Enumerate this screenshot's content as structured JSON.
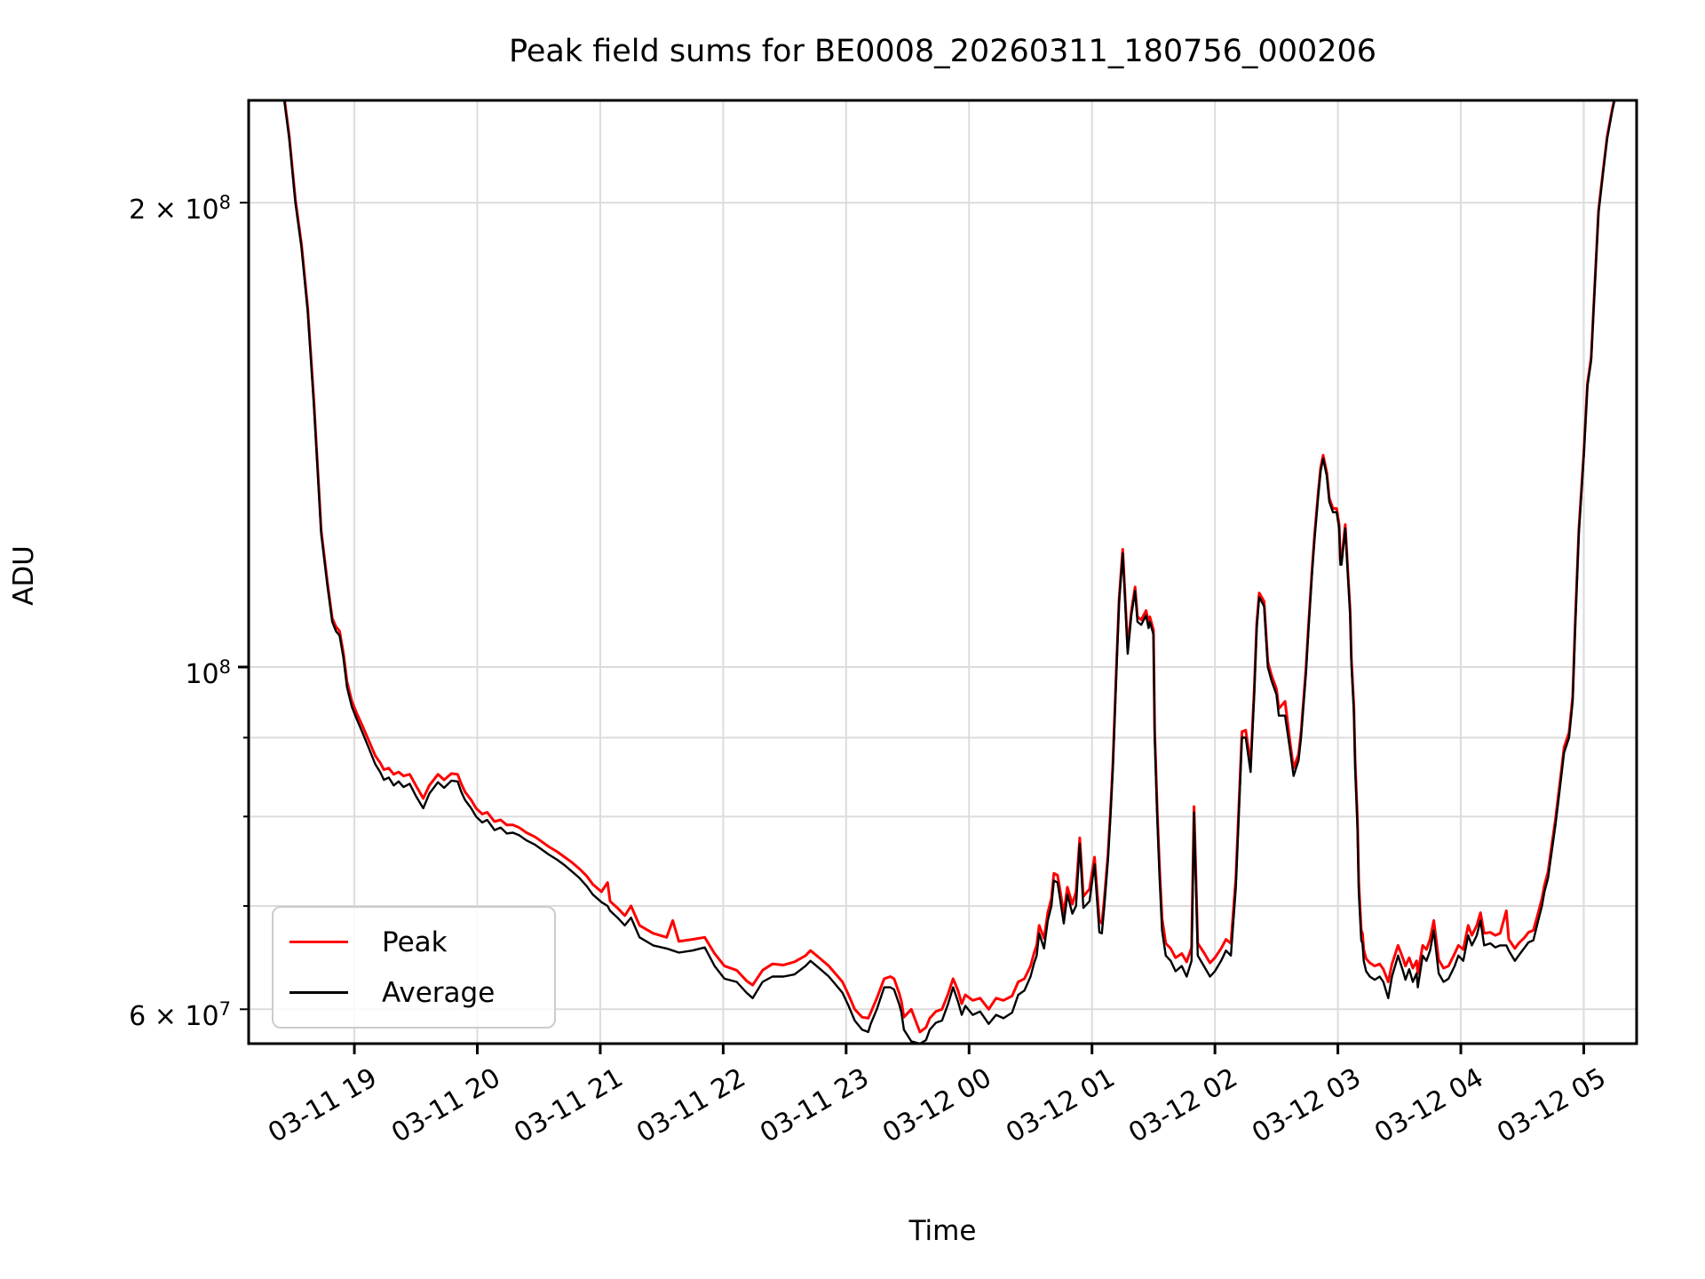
{
  "title": "Peak field sums for BE0008_20260311_180756_000206",
  "legend": {
    "items": [
      {
        "label": "Peak",
        "color": "#ff0000"
      },
      {
        "label": "Average",
        "color": "#000000"
      }
    ]
  },
  "colors": {
    "peak_line": "#ff0000",
    "average_line": "#000000",
    "grid": "#dcdcdc",
    "frame": "#000000",
    "legend_border": "#cccccc",
    "background": "#ffffff"
  },
  "chart_data": {
    "type": "line",
    "title": "Peak field sums for BE0008_20260311_180756_000206",
    "xlabel": "Time",
    "ylabel": "ADU",
    "y_scale": "log",
    "grid": true,
    "legend_position": "lower left",
    "y_unit_scale": 10000000,
    "ylim": [
      57000000,
      233000000
    ],
    "x_unit": "hours since 2026-03-11 00:00",
    "xlim": [
      18.14,
      29.43
    ],
    "x_ticks": [
      {
        "t": 19,
        "label": "03-11 19"
      },
      {
        "t": 20,
        "label": "03-11 20"
      },
      {
        "t": 21,
        "label": "03-11 21"
      },
      {
        "t": 22,
        "label": "03-11 22"
      },
      {
        "t": 23,
        "label": "03-11 23"
      },
      {
        "t": 24,
        "label": "03-12 00"
      },
      {
        "t": 25,
        "label": "03-12 01"
      },
      {
        "t": 26,
        "label": "03-12 02"
      },
      {
        "t": 27,
        "label": "03-12 03"
      },
      {
        "t": 28,
        "label": "03-12 04"
      },
      {
        "t": 29,
        "label": "03-12 05"
      }
    ],
    "y_ticks": [
      {
        "v": 20,
        "label": "2 × 10^8",
        "major": false
      },
      {
        "v": 10,
        "label": "10^8",
        "major": true
      },
      {
        "v": 9,
        "label": "",
        "major": false
      },
      {
        "v": 8,
        "label": "",
        "major": false
      },
      {
        "v": 7,
        "label": "",
        "major": false
      },
      {
        "v": 6,
        "label": "6 × 10^7",
        "major": false
      }
    ],
    "series_names": [
      "Average",
      "Peak"
    ],
    "points_format": "[t_hours, average_x1e7, peak_x1e7]",
    "points": [
      [
        18.14,
        27.5,
        27.6
      ],
      [
        18.25,
        25.0,
        25.1
      ],
      [
        18.35,
        24.0,
        24.1
      ],
      [
        18.43,
        23.3,
        23.4
      ],
      [
        18.47,
        22.0,
        22.1
      ],
      [
        18.52,
        20.0,
        20.1
      ],
      [
        18.57,
        18.7,
        18.8
      ],
      [
        18.62,
        17.0,
        17.1
      ],
      [
        18.67,
        14.8,
        14.9
      ],
      [
        18.73,
        12.2,
        12.26
      ],
      [
        18.78,
        11.3,
        11.36
      ],
      [
        18.82,
        10.7,
        10.76
      ],
      [
        18.85,
        10.55,
        10.62
      ],
      [
        18.88,
        10.48,
        10.55
      ],
      [
        18.91,
        10.15,
        10.22
      ],
      [
        18.94,
        9.7,
        9.78
      ],
      [
        18.98,
        9.42,
        9.5
      ],
      [
        19.02,
        9.25,
        9.33
      ],
      [
        19.07,
        9.05,
        9.14
      ],
      [
        19.12,
        8.85,
        8.95
      ],
      [
        19.17,
        8.65,
        8.76
      ],
      [
        19.21,
        8.55,
        8.67
      ],
      [
        19.24,
        8.45,
        8.58
      ],
      [
        19.28,
        8.48,
        8.6
      ],
      [
        19.32,
        8.38,
        8.52
      ],
      [
        19.36,
        8.43,
        8.55
      ],
      [
        19.4,
        8.36,
        8.5
      ],
      [
        19.45,
        8.4,
        8.52
      ],
      [
        19.5,
        8.25,
        8.38
      ],
      [
        19.56,
        8.1,
        8.22
      ],
      [
        19.61,
        8.28,
        8.38
      ],
      [
        19.68,
        8.42,
        8.52
      ],
      [
        19.73,
        8.35,
        8.45
      ],
      [
        19.79,
        8.44,
        8.53
      ],
      [
        19.84,
        8.43,
        8.52
      ],
      [
        19.87,
        8.3,
        8.4
      ],
      [
        19.9,
        8.2,
        8.3
      ],
      [
        19.95,
        8.1,
        8.2
      ],
      [
        19.99,
        8.0,
        8.1
      ],
      [
        20.04,
        7.93,
        8.03
      ],
      [
        20.08,
        7.96,
        8.05
      ],
      [
        20.14,
        7.84,
        7.94
      ],
      [
        20.19,
        7.87,
        7.96
      ],
      [
        20.24,
        7.8,
        7.9
      ],
      [
        20.29,
        7.81,
        7.9
      ],
      [
        20.34,
        7.78,
        7.87
      ],
      [
        20.4,
        7.72,
        7.81
      ],
      [
        20.47,
        7.67,
        7.76
      ],
      [
        20.52,
        7.62,
        7.71
      ],
      [
        20.58,
        7.56,
        7.65
      ],
      [
        20.65,
        7.5,
        7.59
      ],
      [
        20.71,
        7.44,
        7.53
      ],
      [
        20.77,
        7.37,
        7.47
      ],
      [
        20.83,
        7.3,
        7.4
      ],
      [
        20.89,
        7.21,
        7.32
      ],
      [
        20.94,
        7.12,
        7.23
      ],
      [
        21.01,
        7.04,
        7.15
      ],
      [
        21.06,
        7.0,
        7.25
      ],
      [
        21.08,
        6.95,
        7.05
      ],
      [
        21.14,
        6.88,
        6.98
      ],
      [
        21.2,
        6.8,
        6.9
      ],
      [
        21.25,
        6.88,
        7.0
      ],
      [
        21.32,
        6.68,
        6.8
      ],
      [
        21.43,
        6.6,
        6.72
      ],
      [
        21.54,
        6.57,
        6.68
      ],
      [
        21.59,
        6.55,
        6.85
      ],
      [
        21.64,
        6.53,
        6.64
      ],
      [
        21.75,
        6.55,
        6.66
      ],
      [
        21.85,
        6.58,
        6.68
      ],
      [
        21.93,
        6.4,
        6.52
      ],
      [
        22.01,
        6.28,
        6.4
      ],
      [
        22.11,
        6.25,
        6.36
      ],
      [
        22.19,
        6.15,
        6.26
      ],
      [
        22.24,
        6.1,
        6.22
      ],
      [
        22.32,
        6.25,
        6.36
      ],
      [
        22.4,
        6.3,
        6.42
      ],
      [
        22.49,
        6.3,
        6.41
      ],
      [
        22.58,
        6.32,
        6.44
      ],
      [
        22.67,
        6.4,
        6.5
      ],
      [
        22.71,
        6.45,
        6.55
      ],
      [
        22.79,
        6.37,
        6.47
      ],
      [
        22.86,
        6.3,
        6.4
      ],
      [
        22.97,
        6.15,
        6.25
      ],
      [
        23.02,
        6.03,
        6.13
      ],
      [
        23.07,
        5.9,
        6.0
      ],
      [
        23.13,
        5.82,
        5.93
      ],
      [
        23.18,
        5.8,
        5.92
      ],
      [
        23.2,
        5.87,
        5.97
      ],
      [
        23.25,
        6.0,
        6.1
      ],
      [
        23.31,
        6.2,
        6.28
      ],
      [
        23.36,
        6.2,
        6.3
      ],
      [
        23.39,
        6.18,
        6.28
      ],
      [
        23.43,
        6.05,
        6.15
      ],
      [
        23.45,
        5.97,
        6.07
      ],
      [
        23.47,
        5.82,
        5.93
      ],
      [
        23.53,
        5.72,
        6.0
      ],
      [
        23.6,
        5.7,
        5.8
      ],
      [
        23.65,
        5.73,
        5.84
      ],
      [
        23.68,
        5.82,
        5.92
      ],
      [
        23.73,
        5.88,
        5.98
      ],
      [
        23.78,
        5.9,
        6.0
      ],
      [
        23.83,
        6.05,
        6.14
      ],
      [
        23.87,
        6.2,
        6.28
      ],
      [
        23.91,
        6.07,
        6.17
      ],
      [
        23.94,
        5.95,
        6.05
      ],
      [
        23.97,
        6.03,
        6.13
      ],
      [
        24.03,
        5.95,
        6.08
      ],
      [
        24.09,
        5.98,
        6.1
      ],
      [
        24.16,
        5.87,
        6.0
      ],
      [
        24.22,
        5.95,
        6.1
      ],
      [
        24.28,
        5.92,
        6.08
      ],
      [
        24.35,
        5.97,
        6.12
      ],
      [
        24.4,
        6.13,
        6.25
      ],
      [
        24.45,
        6.17,
        6.28
      ],
      [
        24.5,
        6.3,
        6.4
      ],
      [
        24.53,
        6.43,
        6.53
      ],
      [
        24.55,
        6.5,
        6.6
      ],
      [
        24.57,
        6.72,
        6.8
      ],
      [
        24.61,
        6.57,
        6.67
      ],
      [
        24.64,
        6.85,
        6.93
      ],
      [
        24.67,
        7.0,
        7.08
      ],
      [
        24.69,
        7.27,
        7.35
      ],
      [
        24.72,
        7.25,
        7.33
      ],
      [
        24.74,
        7.08,
        7.17
      ],
      [
        24.77,
        6.82,
        6.92
      ],
      [
        24.8,
        7.12,
        7.2
      ],
      [
        24.84,
        6.92,
        7.02
      ],
      [
        24.87,
        7.0,
        7.15
      ],
      [
        24.9,
        7.68,
        7.75
      ],
      [
        24.93,
        6.98,
        7.1
      ],
      [
        24.98,
        7.05,
        7.18
      ],
      [
        25.02,
        7.45,
        7.53
      ],
      [
        25.06,
        6.73,
        6.85
      ],
      [
        25.08,
        6.72,
        6.82
      ],
      [
        25.1,
        7.0,
        7.08
      ],
      [
        25.13,
        7.5,
        7.56
      ],
      [
        25.15,
        8.0,
        8.06
      ],
      [
        25.17,
        8.6,
        8.66
      ],
      [
        25.2,
        10.0,
        10.07
      ],
      [
        25.22,
        11.0,
        11.07
      ],
      [
        25.25,
        11.85,
        11.92
      ],
      [
        25.27,
        11.0,
        11.08
      ],
      [
        25.29,
        10.2,
        10.28
      ],
      [
        25.32,
        10.8,
        10.87
      ],
      [
        25.35,
        11.2,
        11.27
      ],
      [
        25.37,
        10.7,
        10.78
      ],
      [
        25.4,
        10.65,
        10.73
      ],
      [
        25.44,
        10.8,
        10.88
      ],
      [
        25.46,
        10.6,
        10.68
      ],
      [
        25.47,
        10.7,
        10.78
      ],
      [
        25.5,
        10.5,
        10.57
      ],
      [
        25.51,
        9.0,
        9.1
      ],
      [
        25.53,
        8.0,
        8.1
      ],
      [
        25.55,
        7.3,
        7.4
      ],
      [
        25.57,
        6.75,
        6.87
      ],
      [
        25.6,
        6.5,
        6.62
      ],
      [
        25.64,
        6.45,
        6.57
      ],
      [
        25.68,
        6.35,
        6.48
      ],
      [
        25.73,
        6.4,
        6.52
      ],
      [
        25.77,
        6.3,
        6.44
      ],
      [
        25.81,
        6.45,
        6.58
      ],
      [
        25.83,
        8.05,
        8.12
      ],
      [
        25.86,
        6.5,
        6.62
      ],
      [
        25.91,
        6.4,
        6.53
      ],
      [
        25.96,
        6.3,
        6.43
      ],
      [
        26.0,
        6.35,
        6.48
      ],
      [
        26.05,
        6.45,
        6.57
      ],
      [
        26.09,
        6.55,
        6.66
      ],
      [
        26.13,
        6.5,
        6.62
      ],
      [
        26.17,
        7.2,
        7.3
      ],
      [
        26.22,
        9.0,
        9.08
      ],
      [
        26.25,
        9.0,
        9.1
      ],
      [
        26.29,
        8.55,
        8.65
      ],
      [
        26.32,
        9.6,
        9.68
      ],
      [
        26.34,
        10.6,
        10.67
      ],
      [
        26.36,
        11.1,
        11.17
      ],
      [
        26.4,
        10.95,
        11.03
      ],
      [
        26.43,
        10.0,
        10.08
      ],
      [
        26.46,
        9.8,
        9.88
      ],
      [
        26.5,
        9.6,
        9.68
      ],
      [
        26.52,
        9.3,
        9.4
      ],
      [
        26.57,
        9.3,
        9.5
      ],
      [
        26.61,
        8.85,
        8.95
      ],
      [
        26.64,
        8.5,
        8.6
      ],
      [
        26.68,
        8.7,
        8.78
      ],
      [
        26.7,
        9.0,
        9.07
      ],
      [
        26.74,
        9.9,
        9.97
      ],
      [
        26.76,
        10.55,
        10.62
      ],
      [
        26.79,
        11.5,
        11.57
      ],
      [
        26.81,
        12.1,
        12.17
      ],
      [
        26.84,
        12.9,
        12.97
      ],
      [
        26.86,
        13.4,
        13.47
      ],
      [
        26.88,
        13.65,
        13.72
      ],
      [
        26.91,
        13.3,
        13.37
      ],
      [
        26.93,
        12.8,
        12.87
      ],
      [
        26.96,
        12.6,
        12.67
      ],
      [
        26.99,
        12.6,
        12.67
      ],
      [
        27.01,
        12.3,
        12.37
      ],
      [
        27.02,
        11.65,
        11.72
      ],
      [
        27.03,
        11.65,
        11.72
      ],
      [
        27.06,
        12.3,
        12.37
      ],
      [
        27.08,
        11.5,
        11.57
      ],
      [
        27.1,
        10.8,
        10.88
      ],
      [
        27.11,
        10.05,
        10.13
      ],
      [
        27.13,
        9.35,
        9.43
      ],
      [
        27.14,
        8.6,
        8.7
      ],
      [
        27.16,
        7.85,
        7.95
      ],
      [
        27.17,
        7.15,
        7.25
      ],
      [
        27.19,
        6.65,
        6.75
      ],
      [
        27.2,
        6.62,
        6.72
      ],
      [
        27.21,
        6.45,
        6.56
      ],
      [
        27.23,
        6.35,
        6.47
      ],
      [
        27.26,
        6.3,
        6.43
      ],
      [
        27.3,
        6.27,
        6.4
      ],
      [
        27.34,
        6.3,
        6.42
      ],
      [
        27.37,
        6.25,
        6.37
      ],
      [
        27.41,
        6.1,
        6.25
      ],
      [
        27.44,
        6.3,
        6.42
      ],
      [
        27.49,
        6.5,
        6.6
      ],
      [
        27.53,
        6.35,
        6.47
      ],
      [
        27.55,
        6.27,
        6.4
      ],
      [
        27.58,
        6.37,
        6.48
      ],
      [
        27.61,
        6.25,
        6.38
      ],
      [
        27.64,
        6.33,
        6.45
      ],
      [
        27.65,
        6.2,
        6.33
      ],
      [
        27.69,
        6.5,
        6.6
      ],
      [
        27.72,
        6.45,
        6.56
      ],
      [
        27.75,
        6.55,
        6.66
      ],
      [
        27.78,
        6.75,
        6.85
      ],
      [
        27.82,
        6.33,
        6.46
      ],
      [
        27.86,
        6.25,
        6.38
      ],
      [
        27.9,
        6.28,
        6.4
      ],
      [
        27.95,
        6.4,
        6.52
      ],
      [
        27.98,
        6.5,
        6.6
      ],
      [
        28.02,
        6.45,
        6.56
      ],
      [
        28.06,
        6.7,
        6.8
      ],
      [
        28.09,
        6.6,
        6.7
      ],
      [
        28.13,
        6.7,
        6.8
      ],
      [
        28.16,
        6.85,
        6.93
      ],
      [
        28.19,
        6.6,
        6.72
      ],
      [
        28.24,
        6.62,
        6.73
      ],
      [
        28.28,
        6.58,
        6.7
      ],
      [
        28.32,
        6.6,
        6.72
      ],
      [
        28.37,
        6.6,
        6.95
      ],
      [
        28.39,
        6.55,
        6.66
      ],
      [
        28.44,
        6.45,
        6.57
      ],
      [
        28.47,
        6.5,
        6.62
      ],
      [
        28.52,
        6.58,
        6.68
      ],
      [
        28.55,
        6.63,
        6.73
      ],
      [
        28.59,
        6.65,
        6.75
      ],
      [
        28.63,
        6.85,
        6.93
      ],
      [
        28.66,
        7.0,
        7.08
      ],
      [
        28.68,
        7.15,
        7.22
      ],
      [
        28.71,
        7.3,
        7.37
      ],
      [
        28.73,
        7.5,
        7.57
      ],
      [
        28.77,
        7.9,
        7.97
      ],
      [
        28.81,
        8.4,
        8.47
      ],
      [
        28.84,
        8.8,
        8.87
      ],
      [
        28.88,
        9.0,
        9.07
      ],
      [
        28.91,
        9.5,
        9.57
      ],
      [
        28.93,
        10.6,
        10.67
      ],
      [
        28.96,
        12.2,
        12.27
      ],
      [
        29.0,
        13.7,
        13.77
      ],
      [
        29.03,
        15.2,
        15.27
      ],
      [
        29.06,
        15.8,
        15.87
      ],
      [
        29.08,
        17.0,
        17.07
      ],
      [
        29.12,
        19.7,
        19.77
      ],
      [
        29.16,
        21.0,
        21.07
      ],
      [
        29.19,
        22.0,
        22.07
      ],
      [
        29.23,
        22.9,
        22.97
      ],
      [
        29.25,
        23.3,
        23.37
      ],
      [
        29.3,
        24.5,
        24.6
      ],
      [
        29.36,
        26.0,
        26.1
      ],
      [
        29.43,
        27.5,
        27.6
      ]
    ]
  }
}
